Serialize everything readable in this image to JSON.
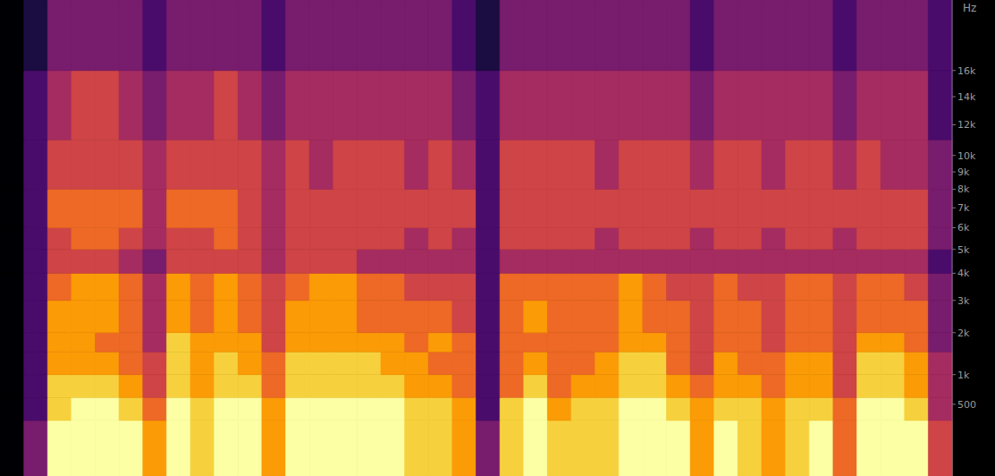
{
  "chart_data": {
    "type": "heatmap",
    "y_label": "Hz",
    "ylim": [
      0,
      22050
    ],
    "yticks": [
      500,
      {
        "value": 1000,
        "label": "1k"
      },
      {
        "value": 2000,
        "label": "2k"
      },
      {
        "value": 3000,
        "label": "3k"
      },
      {
        "value": 4000,
        "label": "4k"
      },
      {
        "value": 5000,
        "label": "5k"
      },
      {
        "value": 6000,
        "label": "6k"
      },
      {
        "value": 7000,
        "label": "7k"
      },
      {
        "value": 8000,
        "label": "8k"
      },
      {
        "value": 9000,
        "label": "9k"
      },
      {
        "value": 10000,
        "label": "10k"
      },
      {
        "value": 12000,
        "label": "12k"
      },
      {
        "value": 14000,
        "label": "14k"
      },
      {
        "value": 16000,
        "label": "16k"
      }
    ],
    "tick_labels": "y",
    "y_bins": [
      0,
      300,
      600,
      1000,
      1500,
      2000,
      3000,
      4000,
      5000,
      6000,
      8000,
      11000,
      16000,
      22050
    ],
    "zlim": [
      0,
      9
    ],
    "cells": [
      [
        0,
        0,
        0,
        0,
        0,
        0,
        0,
        0,
        0,
        0,
        0,
        0,
        0
      ],
      [
        3,
        2,
        2,
        2,
        2,
        2,
        2,
        2,
        2,
        2,
        2,
        2,
        1
      ],
      [
        9,
        8,
        8,
        7,
        7,
        7,
        6,
        5,
        5,
        6,
        5,
        4,
        3
      ],
      [
        9,
        9,
        8,
        7,
        7,
        7,
        7,
        5,
        6,
        6,
        5,
        5,
        3
      ],
      [
        9,
        9,
        8,
        7,
        6,
        7,
        7,
        5,
        6,
        6,
        5,
        5,
        3
      ],
      [
        9,
        8,
        7,
        6,
        6,
        6,
        6,
        4,
        5,
        6,
        5,
        4,
        3
      ],
      [
        7,
        6,
        5,
        5,
        4,
        4,
        4,
        3,
        4,
        4,
        4,
        3,
        2
      ],
      [
        9,
        9,
        8,
        8,
        8,
        7,
        7,
        5,
        5,
        6,
        5,
        4,
        3
      ],
      [
        8,
        8,
        7,
        7,
        7,
        6,
        6,
        5,
        5,
        6,
        5,
        4,
        3
      ],
      [
        9,
        9,
        8,
        8,
        7,
        7,
        7,
        5,
        6,
        6,
        5,
        5,
        3
      ],
      [
        9,
        9,
        8,
        7,
        7,
        6,
        6,
        5,
        5,
        5,
        5,
        4,
        3
      ],
      [
        7,
        7,
        6,
        6,
        5,
        5,
        5,
        4,
        4,
        4,
        4,
        3,
        2
      ],
      [
        9,
        9,
        8,
        8,
        7,
        7,
        6,
        5,
        5,
        5,
        5,
        4,
        3
      ],
      [
        9,
        9,
        8,
        8,
        7,
        7,
        7,
        5,
        5,
        5,
        4,
        4,
        3
      ],
      [
        9,
        9,
        8,
        8,
        7,
        7,
        7,
        5,
        5,
        5,
        5,
        4,
        3
      ],
      [
        9,
        9,
        8,
        8,
        7,
        6,
        6,
        4,
        5,
        5,
        5,
        4,
        3
      ],
      [
        9,
        9,
        8,
        7,
        7,
        6,
        6,
        4,
        5,
        5,
        5,
        4,
        3
      ],
      [
        8,
        8,
        7,
        7,
        6,
        6,
        5,
        4,
        4,
        5,
        4,
        4,
        3
      ],
      [
        8,
        8,
        7,
        6,
        7,
        6,
        5,
        4,
        5,
        5,
        5,
        4,
        3
      ],
      [
        7,
        7,
        6,
        6,
        6,
        5,
        5,
        4,
        4,
        5,
        4,
        3,
        2
      ],
      [
        3,
        2,
        2,
        2,
        2,
        2,
        2,
        2,
        2,
        2,
        2,
        2,
        1
      ],
      [
        8,
        8,
        6,
        6,
        6,
        6,
        6,
        4,
        5,
        5,
        5,
        4,
        3
      ],
      [
        9,
        9,
        8,
        7,
        6,
        7,
        6,
        4,
        5,
        5,
        5,
        4,
        3
      ],
      [
        8,
        7,
        6,
        6,
        6,
        6,
        6,
        4,
        5,
        5,
        5,
        4,
        3
      ],
      [
        8,
        8,
        7,
        6,
        6,
        6,
        6,
        4,
        5,
        5,
        5,
        4,
        3
      ],
      [
        8,
        8,
        7,
        7,
        6,
        6,
        6,
        4,
        4,
        5,
        4,
        4,
        3
      ],
      [
        9,
        9,
        8,
        8,
        7,
        7,
        7,
        4,
        5,
        5,
        5,
        4,
        3
      ],
      [
        9,
        9,
        8,
        8,
        7,
        6,
        6,
        4,
        5,
        5,
        5,
        4,
        3
      ],
      [
        9,
        8,
        7,
        6,
        6,
        6,
        5,
        4,
        5,
        5,
        5,
        4,
        3
      ],
      [
        7,
        7,
        6,
        5,
        5,
        5,
        5,
        4,
        4,
        5,
        4,
        3,
        2
      ],
      [
        9,
        8,
        7,
        7,
        6,
        6,
        6,
        4,
        5,
        5,
        5,
        4,
        3
      ],
      [
        8,
        8,
        7,
        6,
        6,
        6,
        5,
        4,
        5,
        5,
        5,
        4,
        3
      ],
      [
        7,
        7,
        6,
        6,
        5,
        5,
        5,
        4,
        4,
        5,
        4,
        4,
        3
      ],
      [
        8,
        8,
        7,
        7,
        6,
        6,
        6,
        4,
        5,
        5,
        5,
        4,
        3
      ],
      [
        9,
        8,
        7,
        7,
        6,
        6,
        6,
        4,
        5,
        5,
        5,
        4,
        3
      ],
      [
        6,
        6,
        5,
        5,
        5,
        5,
        5,
        4,
        4,
        5,
        4,
        3,
        2
      ],
      [
        9,
        9,
        8,
        8,
        7,
        6,
        6,
        4,
        5,
        5,
        5,
        4,
        3
      ],
      [
        9,
        9,
        8,
        8,
        7,
        6,
        6,
        4,
        5,
        5,
        4,
        4,
        3
      ],
      [
        9,
        8,
        7,
        7,
        6,
        6,
        5,
        4,
        5,
        5,
        4,
        4,
        3
      ],
      [
        5,
        4,
        4,
        4,
        3,
        3,
        3,
        2,
        3,
        3,
        3,
        2,
        2
      ]
    ]
  }
}
